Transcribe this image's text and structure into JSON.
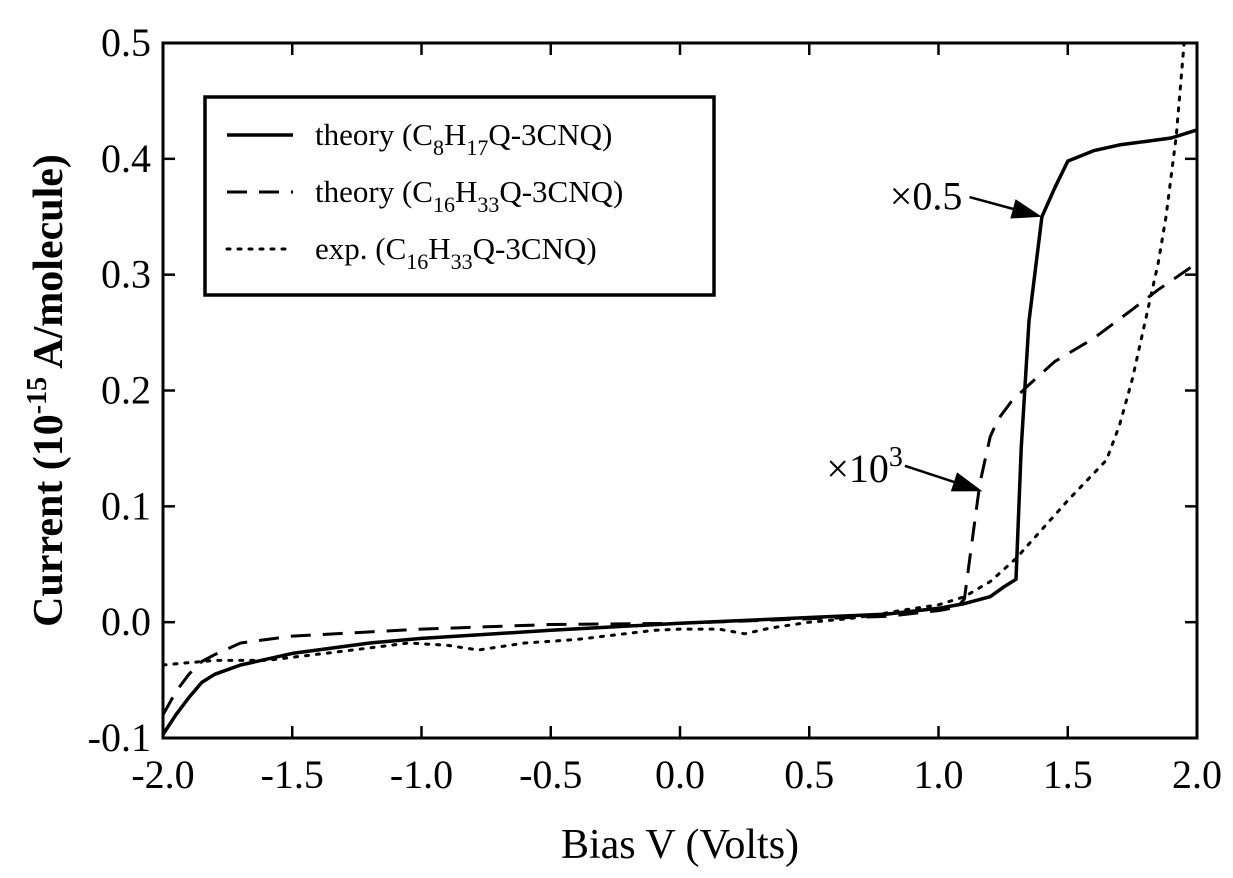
{
  "chart_data": {
    "type": "line",
    "title": "",
    "xlabel": "Bias V (Volts)",
    "ylabel": {
      "prefix": "Current (10",
      "exponent": "-15",
      "suffix": " A/molecule)"
    },
    "xlim": [
      -2.0,
      2.0
    ],
    "ylim": [
      -0.1,
      0.5
    ],
    "x_ticks": [
      "-2.0",
      "-1.5",
      "-1.0",
      "-0.5",
      "0.0",
      "0.5",
      "1.0",
      "1.5",
      "2.0"
    ],
    "y_ticks": [
      "-0.1",
      "0.0",
      "0.1",
      "0.2",
      "0.3",
      "0.4",
      "0.5"
    ],
    "grid": false,
    "legend_position": "top-left",
    "series": [
      {
        "name": "theory (C8H17Q-3CNQ)",
        "legend": {
          "pre": "theory (C",
          "sub1": "8",
          "mid": "H",
          "sub2": "17",
          "post": "Q-3CNQ)"
        },
        "style": "solid",
        "points": [
          [
            -2.0,
            -0.097
          ],
          [
            -1.95,
            -0.08
          ],
          [
            -1.9,
            -0.065
          ],
          [
            -1.85,
            -0.052
          ],
          [
            -1.8,
            -0.045
          ],
          [
            -1.7,
            -0.037
          ],
          [
            -1.5,
            -0.027
          ],
          [
            -1.2,
            -0.018
          ],
          [
            -1.0,
            -0.014
          ],
          [
            -0.5,
            -0.007
          ],
          [
            0.0,
            -0.001
          ],
          [
            0.5,
            0.004
          ],
          [
            0.8,
            0.007
          ],
          [
            1.0,
            0.012
          ],
          [
            1.1,
            0.016
          ],
          [
            1.2,
            0.022
          ],
          [
            1.25,
            0.03
          ],
          [
            1.3,
            0.037
          ],
          [
            1.32,
            0.15
          ],
          [
            1.35,
            0.26
          ],
          [
            1.4,
            0.35
          ],
          [
            1.45,
            0.375
          ],
          [
            1.5,
            0.398
          ],
          [
            1.6,
            0.407
          ],
          [
            1.7,
            0.412
          ],
          [
            1.8,
            0.415
          ],
          [
            1.9,
            0.418
          ],
          [
            2.0,
            0.425
          ]
        ]
      },
      {
        "name": "theory (C16H33Q-3CNQ)",
        "legend": {
          "pre": "theory (C",
          "sub1": "16",
          "mid": "H",
          "sub2": "33",
          "post": "Q-3CNQ)"
        },
        "style": "dashed",
        "points": [
          [
            -2.0,
            -0.08
          ],
          [
            -1.95,
            -0.06
          ],
          [
            -1.9,
            -0.045
          ],
          [
            -1.85,
            -0.034
          ],
          [
            -1.8,
            -0.028
          ],
          [
            -1.7,
            -0.018
          ],
          [
            -1.5,
            -0.012
          ],
          [
            -1.0,
            -0.006
          ],
          [
            -0.5,
            -0.002
          ],
          [
            0.0,
            -0.001
          ],
          [
            0.5,
            0.003
          ],
          [
            0.8,
            0.005
          ],
          [
            1.0,
            0.01
          ],
          [
            1.05,
            0.012
          ],
          [
            1.08,
            0.015
          ],
          [
            1.1,
            0.02
          ],
          [
            1.13,
            0.07
          ],
          [
            1.16,
            0.12
          ],
          [
            1.2,
            0.16
          ],
          [
            1.23,
            0.175
          ],
          [
            1.28,
            0.19
          ],
          [
            1.35,
            0.205
          ],
          [
            1.45,
            0.225
          ],
          [
            1.6,
            0.245
          ],
          [
            1.75,
            0.27
          ],
          [
            1.85,
            0.287
          ],
          [
            2.0,
            0.31
          ]
        ]
      },
      {
        "name": "exp. (C16H33Q-3CNQ)",
        "legend": {
          "pre": "exp. (C",
          "sub1": "16",
          "mid": "H",
          "sub2": "33",
          "post": "Q-3CNQ)"
        },
        "style": "dotted",
        "points": [
          [
            -2.0,
            -0.037
          ],
          [
            -1.8,
            -0.033
          ],
          [
            -1.6,
            -0.033
          ],
          [
            -1.3,
            -0.025
          ],
          [
            -1.05,
            -0.018
          ],
          [
            -0.9,
            -0.02
          ],
          [
            -0.78,
            -0.024
          ],
          [
            -0.6,
            -0.018
          ],
          [
            -0.4,
            -0.015
          ],
          [
            -0.1,
            -0.007
          ],
          [
            0.0,
            -0.006
          ],
          [
            0.15,
            -0.006
          ],
          [
            0.25,
            -0.01
          ],
          [
            0.35,
            -0.005
          ],
          [
            0.5,
            0.0
          ],
          [
            0.65,
            0.003
          ],
          [
            0.75,
            0.006
          ],
          [
            0.85,
            0.01
          ],
          [
            1.0,
            0.015
          ],
          [
            1.1,
            0.022
          ],
          [
            1.2,
            0.035
          ],
          [
            1.3,
            0.055
          ],
          [
            1.4,
            0.08
          ],
          [
            1.5,
            0.105
          ],
          [
            1.65,
            0.14
          ],
          [
            1.7,
            0.17
          ],
          [
            1.75,
            0.21
          ],
          [
            1.8,
            0.26
          ],
          [
            1.85,
            0.31
          ],
          [
            1.88,
            0.35
          ],
          [
            1.92,
            0.42
          ],
          [
            1.95,
            0.5
          ]
        ]
      }
    ],
    "annotations": [
      {
        "text": "×0.5",
        "text_at": [
          1.1,
          0.37
        ],
        "arrow_from": [
          1.12,
          0.367
        ],
        "arrow_to": [
          1.4,
          0.35
        ]
      },
      {
        "text": "×10",
        "sup": "3",
        "text_at": [
          0.87,
          0.135
        ],
        "arrow_from": [
          0.87,
          0.135
        ],
        "arrow_to": [
          1.17,
          0.113
        ]
      }
    ]
  }
}
